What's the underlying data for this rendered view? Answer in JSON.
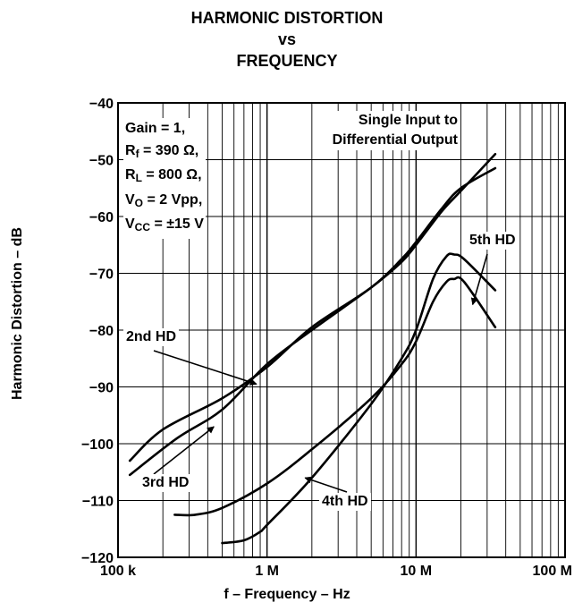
{
  "title": [
    "HARMONIC DISTORTION",
    "vs",
    "FREQUENCY"
  ],
  "conditions": {
    "gain": "Gain = 1,",
    "rf_pre": "R",
    "rf_sub": "f",
    "rf_post": " = 390 Ω,",
    "rl_pre": "R",
    "rl_sub": "L",
    "rl_post": " = 800 Ω,",
    "vo_pre": "V",
    "vo_sub": "O",
    "vo_post": " = 2 Vpp,",
    "vcc_pre": "V",
    "vcc_sub": "CC",
    "vcc_post": " = ±15 V"
  },
  "note": [
    "Single Input to",
    "Differential Output"
  ],
  "chart_data": {
    "type": "line",
    "xlabel": "f – Frequency – Hz",
    "ylabel": "Harmonic Distortion – dB",
    "xscale": "log",
    "xlim": [
      100000,
      100000000
    ],
    "ylim": [
      -120,
      -40
    ],
    "grid": true,
    "x_ticks": [
      {
        "value": 100000,
        "label": "100 k"
      },
      {
        "value": 1000000,
        "label": "1 M"
      },
      {
        "value": 10000000,
        "label": "10 M"
      },
      {
        "value": 100000000,
        "label": "100 M"
      }
    ],
    "y_ticks": [
      {
        "value": -40,
        "label": "−40"
      },
      {
        "value": -50,
        "label": "−50"
      },
      {
        "value": -60,
        "label": "−60"
      },
      {
        "value": -70,
        "label": "−70"
      },
      {
        "value": -80,
        "label": "−80"
      },
      {
        "value": -90,
        "label": "−90"
      },
      {
        "value": -100,
        "label": "−100"
      },
      {
        "value": -110,
        "label": "−110"
      },
      {
        "value": -120,
        "label": "−120"
      }
    ],
    "series": [
      {
        "name": "2nd HD",
        "points": [
          [
            120000,
            -103
          ],
          [
            200000,
            -97.5
          ],
          [
            500000,
            -92
          ],
          [
            1000000,
            -86.5
          ],
          [
            2000000,
            -79.5
          ],
          [
            5000000,
            -72.5
          ],
          [
            8000000,
            -67.5
          ],
          [
            10000000,
            -64.5
          ],
          [
            15000000,
            -58.5
          ],
          [
            20000000,
            -55
          ],
          [
            34000000,
            -51.5
          ]
        ]
      },
      {
        "name": "3rd HD",
        "points": [
          [
            120000,
            -105.5
          ],
          [
            250000,
            -99
          ],
          [
            500000,
            -94
          ],
          [
            1000000,
            -86
          ],
          [
            2000000,
            -80
          ],
          [
            5000000,
            -72.5
          ],
          [
            8000000,
            -68
          ],
          [
            10000000,
            -65
          ],
          [
            15000000,
            -59
          ],
          [
            20000000,
            -55.5
          ],
          [
            34000000,
            -49
          ]
        ]
      },
      {
        "name": "4th HD",
        "points": [
          [
            240000,
            -112.5
          ],
          [
            330000,
            -112.5
          ],
          [
            500000,
            -111.3
          ],
          [
            1000000,
            -107
          ],
          [
            2000000,
            -101
          ],
          [
            5000000,
            -92
          ],
          [
            8000000,
            -86
          ],
          [
            10000000,
            -82
          ],
          [
            13000000,
            -75
          ],
          [
            16000000,
            -71.5
          ],
          [
            18000000,
            -71
          ],
          [
            21000000,
            -71.5
          ],
          [
            34000000,
            -79.5
          ]
        ]
      },
      {
        "name": "5th HD",
        "points": [
          [
            500000,
            -117.5
          ],
          [
            700000,
            -117
          ],
          [
            900000,
            -115.5
          ],
          [
            1000000,
            -114.3
          ],
          [
            2000000,
            -106
          ],
          [
            5000000,
            -93
          ],
          [
            8000000,
            -85
          ],
          [
            10000000,
            -80
          ],
          [
            13000000,
            -71
          ],
          [
            16000000,
            -67
          ],
          [
            18000000,
            -66.7
          ],
          [
            21000000,
            -67.5
          ],
          [
            34000000,
            -73
          ]
        ]
      }
    ],
    "annotations": [
      {
        "text": "2nd HD",
        "arrow_to": [
          850000,
          -89.5
        ]
      },
      {
        "text": "3rd HD",
        "arrow_to": [
          440000,
          -97
        ]
      },
      {
        "text": "4th HD",
        "arrow_to": [
          1800000,
          -106
        ]
      },
      {
        "text": "5th HD",
        "arrow_to": [
          24000000,
          -75.5
        ]
      }
    ]
  }
}
